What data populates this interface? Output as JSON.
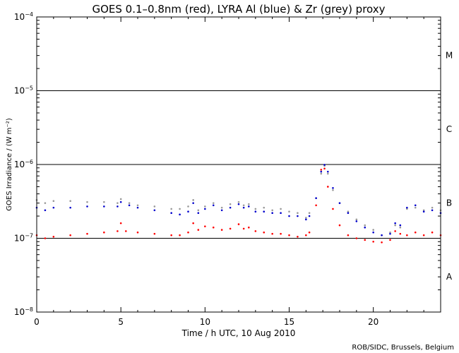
{
  "chart_data": {
    "type": "scatter",
    "title": "GOES 0.1–0.8nm (red), LYRA Al (blue) & Zr (grey) proxy",
    "xlabel": "Time / h UTC, 10 Aug 2010",
    "ylabel": "GOES Irradiance / (W m⁻²)",
    "credit": "ROB/SIDC, Brussels, Belgium",
    "xlim": [
      0,
      24
    ],
    "ylim": [
      1e-08,
      0.0001
    ],
    "yscale": "log",
    "x_ticks": [
      0,
      5,
      10,
      15,
      20
    ],
    "x_tick_labels": [
      "0",
      "5",
      "10",
      "15",
      "20"
    ],
    "y_ticks": [
      1e-08,
      1e-07,
      1e-06,
      1e-05,
      0.0001
    ],
    "y_tick_labels": [
      {
        "base": "10",
        "exp": "−8"
      },
      {
        "base": "10",
        "exp": "−7"
      },
      {
        "base": "10",
        "exp": "−6"
      },
      {
        "base": "10",
        "exp": "−5"
      },
      {
        "base": "10",
        "exp": "−4"
      }
    ],
    "flare_class_lines": [
      1e-07,
      1e-06,
      1e-05
    ],
    "flare_class_labels": [
      {
        "label": "A",
        "y": 3e-08
      },
      {
        "label": "B",
        "y": 3e-07
      },
      {
        "label": "C",
        "y": 3e-06
      },
      {
        "label": "M",
        "y": 3e-05
      }
    ],
    "series": [
      {
        "color": "#999999",
        "x": [
          0,
          0.5,
          1,
          2,
          3,
          4,
          4.8,
          5,
          5.5,
          6,
          7,
          8,
          8.5,
          9,
          9.3,
          9.6,
          10,
          10.5,
          11,
          11.5,
          12,
          12.3,
          12.6,
          13,
          13.5,
          14,
          14.5,
          15,
          15.5,
          16,
          16.2,
          16.6,
          16.9,
          17.1,
          17.3,
          17.6,
          18,
          18.5,
          19,
          19.5,
          20,
          20.5,
          21,
          21.3,
          21.6,
          22,
          22.5,
          23,
          23.5,
          24
        ],
        "y": [
          3.3e-07,
          3e-07,
          3.2e-07,
          3.2e-07,
          3.1e-07,
          3.1e-07,
          3e-07,
          3.4e-07,
          3e-07,
          2.8e-07,
          2.7e-07,
          2.5e-07,
          2.5e-07,
          2.7e-07,
          3.3e-07,
          2.4e-07,
          2.7e-07,
          3e-07,
          2.6e-07,
          2.9e-07,
          3.1e-07,
          2.8e-07,
          2.9e-07,
          2.5e-07,
          2.6e-07,
          2.4e-07,
          2.5e-07,
          2.3e-07,
          2.2e-07,
          1.9e-07,
          2.2e-07,
          3.5e-07,
          7.5e-07,
          9.6e-07,
          7.5e-07,
          4.5e-07,
          3e-07,
          2.3e-07,
          1.8e-07,
          1.5e-07,
          1.3e-07,
          1.1e-07,
          1.2e-07,
          1.5e-07,
          1.4e-07,
          2.5e-07,
          2.6e-07,
          2.4e-07,
          2.6e-07,
          2.4e-07
        ]
      },
      {
        "color": "#0000cc",
        "x": [
          0,
          0.5,
          1,
          2,
          3,
          4,
          4.8,
          5,
          5.5,
          6,
          7,
          8,
          8.5,
          9,
          9.3,
          9.6,
          10,
          10.5,
          11,
          11.5,
          12,
          12.3,
          12.6,
          13,
          13.5,
          14,
          14.5,
          15,
          15.5,
          16,
          16.2,
          16.6,
          16.9,
          17.1,
          17.3,
          17.6,
          18,
          18.5,
          19,
          19.5,
          20,
          20.5,
          21,
          21.3,
          21.6,
          22,
          22.5,
          23,
          23.5,
          24
        ],
        "y": [
          2.6e-07,
          2.4e-07,
          2.6e-07,
          2.6e-07,
          2.7e-07,
          2.7e-07,
          2.7e-07,
          3.1e-07,
          2.8e-07,
          2.6e-07,
          2.4e-07,
          2.2e-07,
          2.1e-07,
          2.3e-07,
          3e-07,
          2.2e-07,
          2.5e-07,
          2.8e-07,
          2.4e-07,
          2.6e-07,
          2.9e-07,
          2.6e-07,
          2.7e-07,
          2.3e-07,
          2.3e-07,
          2.2e-07,
          2.2e-07,
          2e-07,
          2e-07,
          1.8e-07,
          2e-07,
          3.5e-07,
          8e-07,
          9.9e-07,
          8e-07,
          4.8e-07,
          3e-07,
          2.2e-07,
          1.7e-07,
          1.4e-07,
          1.2e-07,
          1.1e-07,
          1.15e-07,
          1.6e-07,
          1.5e-07,
          2.6e-07,
          2.8e-07,
          2.3e-07,
          2.4e-07,
          2.2e-07
        ]
      },
      {
        "color": "#ff0000",
        "x": [
          0,
          0.5,
          1,
          2,
          3,
          4,
          4.8,
          5,
          5.3,
          6,
          7,
          8,
          8.5,
          9,
          9.3,
          9.6,
          10,
          10.5,
          11,
          11.5,
          12,
          12.3,
          12.6,
          13,
          13.5,
          14,
          14.5,
          15,
          15.5,
          16,
          16.2,
          16.6,
          16.9,
          17.1,
          17.3,
          17.6,
          18,
          18.5,
          19,
          19.5,
          20,
          20.5,
          21,
          21.3,
          21.6,
          22,
          22.5,
          23,
          23.5,
          24
        ],
        "y": [
          1.1e-07,
          1e-07,
          1.05e-07,
          1.1e-07,
          1.15e-07,
          1.2e-07,
          1.25e-07,
          1.6e-07,
          1.25e-07,
          1.2e-07,
          1.15e-07,
          1.1e-07,
          1.1e-07,
          1.2e-07,
          1.6e-07,
          1.3e-07,
          1.45e-07,
          1.4e-07,
          1.3e-07,
          1.35e-07,
          1.55e-07,
          1.35e-07,
          1.4e-07,
          1.25e-07,
          1.2e-07,
          1.15e-07,
          1.15e-07,
          1.1e-07,
          1.05e-07,
          1.1e-07,
          1.2e-07,
          2.8e-07,
          8.5e-07,
          8.8e-07,
          5e-07,
          2.5e-07,
          1.5e-07,
          1.1e-07,
          1e-07,
          9.5e-08,
          9e-08,
          8.8e-08,
          9.5e-08,
          1.25e-07,
          1.15e-07,
          1.1e-07,
          1.2e-07,
          1.1e-07,
          1.2e-07,
          1.1e-07
        ]
      }
    ]
  }
}
